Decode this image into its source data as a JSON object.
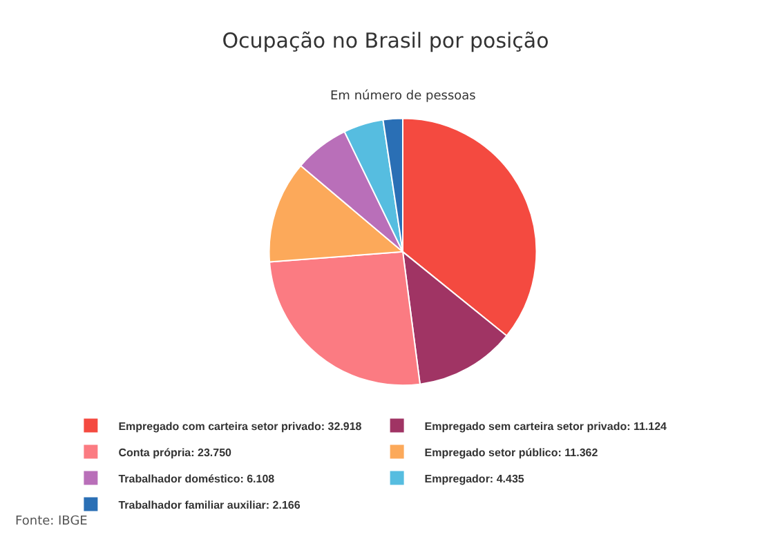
{
  "chart_data": {
    "type": "pie",
    "title": "Ocupação no Brasil por posição",
    "subtitle": "Em número de pessoas",
    "categories": [
      "Empregado com carteira setor privado: 32.918",
      "Empregado sem carteira setor privado: 11.124",
      "Conta própria: 23.750",
      "Empregado setor público: 11.362",
      "Trabalhador doméstico: 6.108",
      "Empregador: 4.435",
      "Trabalhador familiar auxiliar: 2.166"
    ],
    "values": [
      32.918,
      11.124,
      23.75,
      11.362,
      6.108,
      4.435,
      2.166
    ],
    "colors": [
      "#f44a40",
      "#a03464",
      "#fb7b82",
      "#fca95a",
      "#b96fb9",
      "#56bde0",
      "#2a6fb5"
    ],
    "legend": "bottom",
    "annotations": [
      "Fonte: IBGE"
    ]
  }
}
